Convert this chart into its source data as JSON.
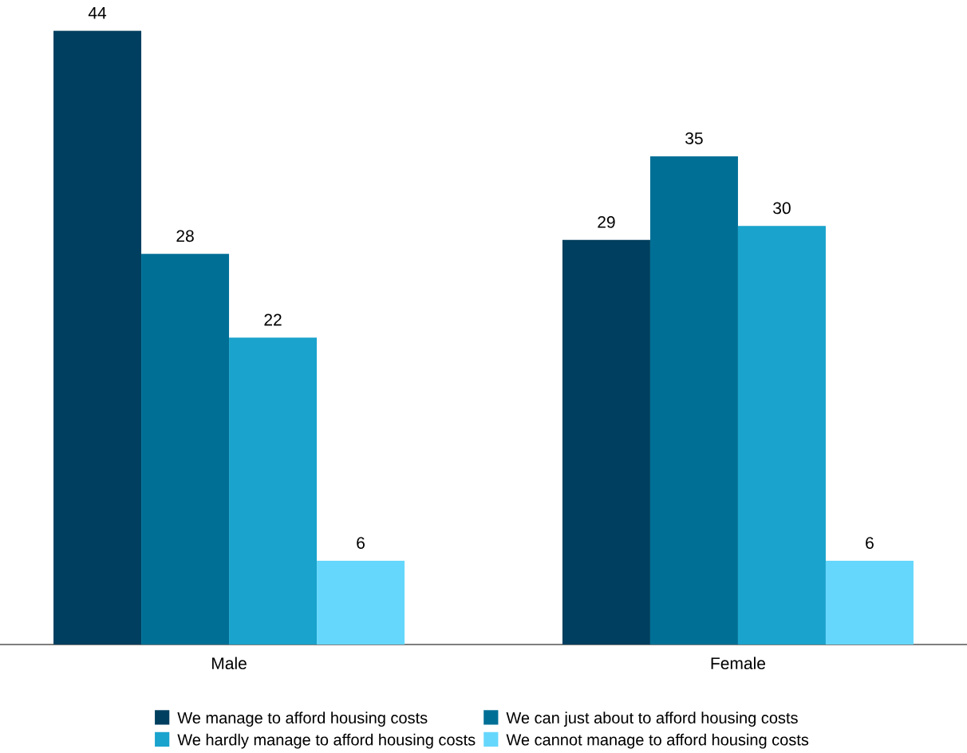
{
  "chart_data": {
    "type": "bar",
    "categories": [
      "Male",
      "Female"
    ],
    "series": [
      {
        "name": "We manage to afford housing costs",
        "color": "#003f5f",
        "values": [
          44,
          29
        ]
      },
      {
        "name": "We can just about to afford housing costs",
        "color": "#006f96",
        "values": [
          28,
          35
        ]
      },
      {
        "name": "We hardly manage to afford housing costs",
        "color": "#1aa3cc",
        "values": [
          22,
          30
        ]
      },
      {
        "name": "We cannot manage to afford housing costs",
        "color": "#66d7fc",
        "values": [
          6,
          6
        ]
      }
    ],
    "data_labels": true,
    "legend": "bottom"
  }
}
